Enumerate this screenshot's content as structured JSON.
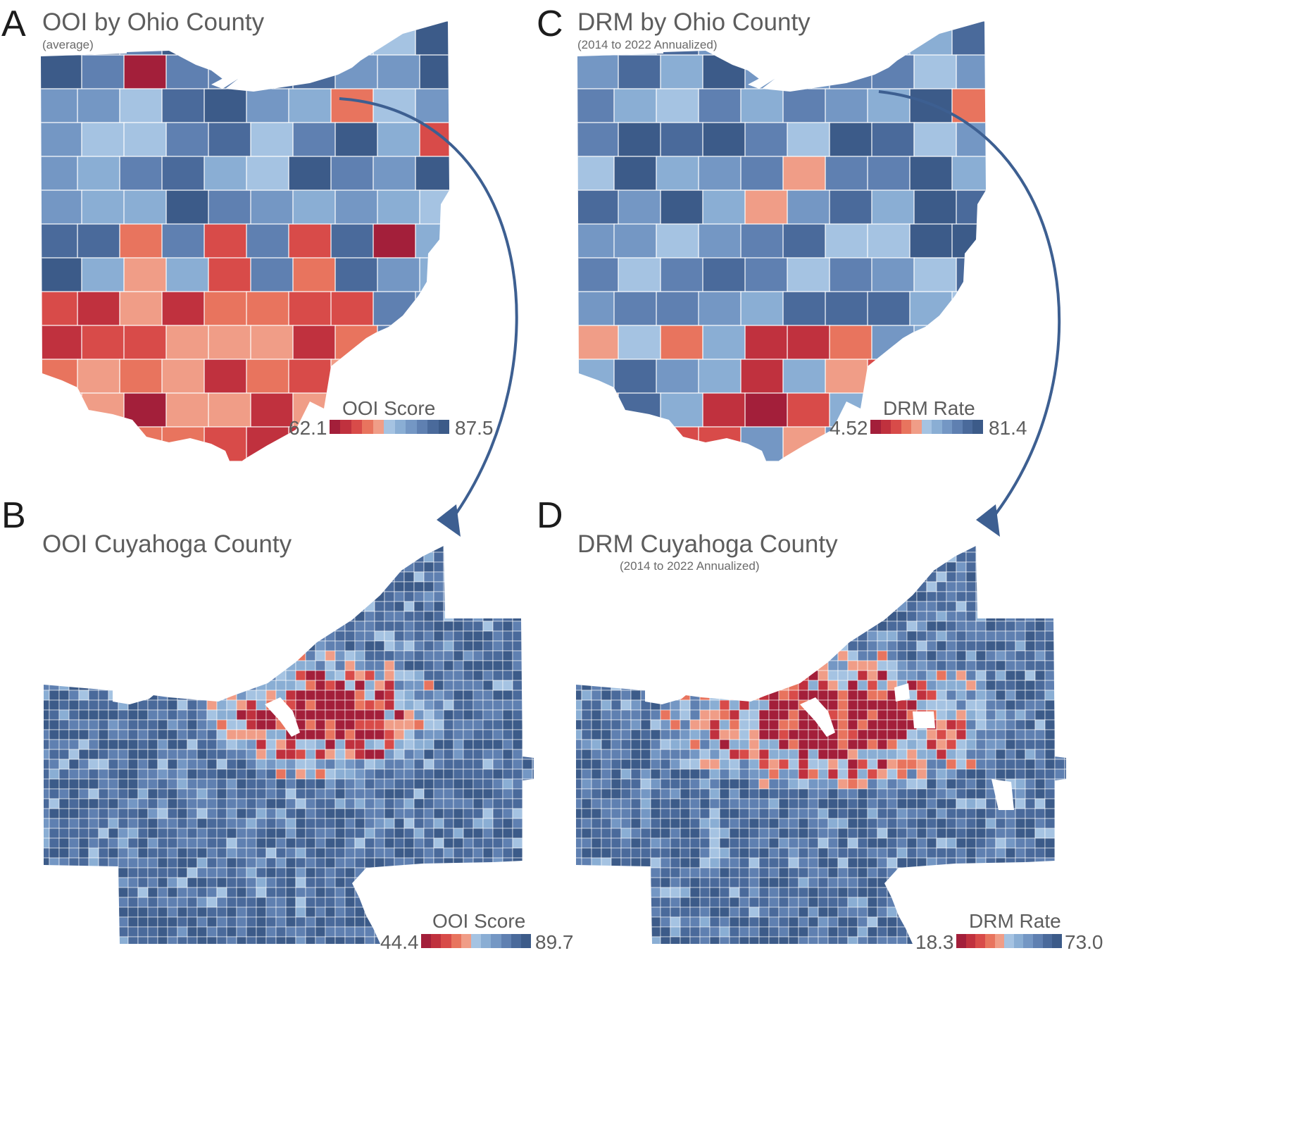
{
  "panels": [
    {
      "id": "A",
      "letter": "A",
      "title": "OOI by Ohio County",
      "subtitle": "(average)",
      "legend": {
        "title": "OOI Score",
        "min": "62.1",
        "max": "87.5"
      }
    },
    {
      "id": "B",
      "letter": "B",
      "title": "OOI Cuyahoga County",
      "subtitle": "",
      "legend": {
        "title": "OOI Score",
        "min": "44.4",
        "max": "89.7"
      }
    },
    {
      "id": "C",
      "letter": "C",
      "title": "DRM by Ohio County",
      "subtitle": "(2014 to 2022 Annualized)",
      "legend": {
        "title": "DRM Rate",
        "min": "4.52",
        "max": "81.4"
      }
    },
    {
      "id": "D",
      "letter": "D",
      "title": "DRM Cuyahoga County",
      "subtitle": "(2014 to 2022 Annualized)",
      "legend": {
        "title": "DRM Rate",
        "min": "18.3",
        "max": "73.0"
      }
    }
  ],
  "colors": {
    "palette": [
      "#a31f3a",
      "#c0313e",
      "#d84b49",
      "#e8745e",
      "#f09d87",
      "#a5c3e2",
      "#8aaed4",
      "#7497c4",
      "#5f80b1",
      "#4a6a9b",
      "#3c5b89"
    ],
    "arrow": "#3d5f91",
    "boundary": "#ffffff"
  },
  "icons": {
    "arrow": "curved-arrow-icon"
  }
}
